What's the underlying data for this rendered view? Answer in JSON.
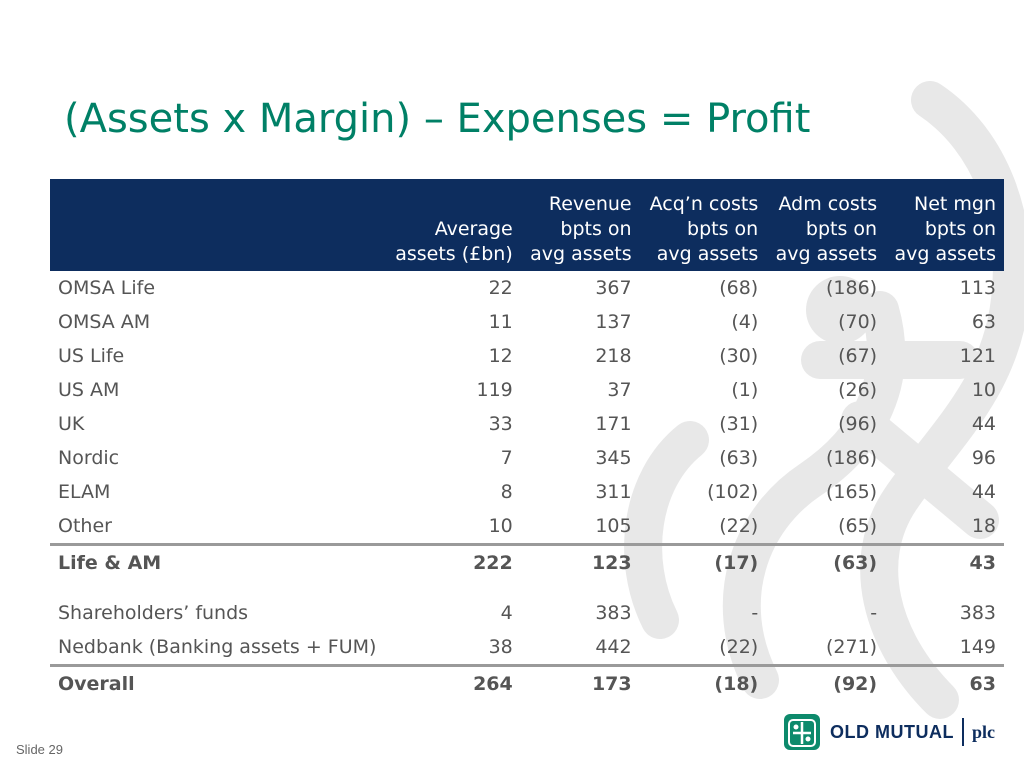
{
  "title": "(Assets x Margin) – Expenses = Profit",
  "table": {
    "headers": [
      {
        "lines": [
          "",
          "",
          ""
        ]
      },
      {
        "lines": [
          "",
          "Average",
          "assets (£bn)"
        ]
      },
      {
        "lines": [
          "Revenue",
          "bpts on",
          "avg assets"
        ]
      },
      {
        "lines": [
          "Acq’n costs",
          "bpts on",
          "avg assets"
        ]
      },
      {
        "lines": [
          "Adm costs",
          "bpts on",
          "avg assets"
        ]
      },
      {
        "lines": [
          "Net mgn",
          "bpts on",
          "avg assets"
        ]
      }
    ],
    "rows": [
      [
        "OMSA Life",
        "22",
        "367",
        "(68)",
        "(186)",
        "113"
      ],
      [
        "OMSA AM",
        "11",
        "137",
        "(4)",
        "(70)",
        "63"
      ],
      [
        "US Life",
        "12",
        "218",
        "(30)",
        "(67)",
        "121"
      ],
      [
        "US AM",
        "119",
        "37",
        "(1)",
        "(26)",
        "10"
      ],
      [
        "UK",
        "33",
        "171",
        "(31)",
        "(96)",
        "44"
      ],
      [
        "Nordic",
        "7",
        "345",
        "(63)",
        "(186)",
        "96"
      ],
      [
        "ELAM",
        "8",
        "311",
        "(102)",
        "(165)",
        "44"
      ],
      [
        "Other",
        "10",
        "105",
        "(22)",
        "(65)",
        "18"
      ]
    ],
    "life_total": [
      "Life & AM",
      "222",
      "123",
      "(17)",
      "(63)",
      "43"
    ],
    "rows2": [
      [
        "Shareholders’ funds",
        "4",
        "383",
        "-",
        "-",
        "383"
      ],
      [
        "Nedbank (Banking assets + FUM)",
        "38",
        "442",
        "(22)",
        "(271)",
        "149"
      ]
    ],
    "overall": [
      "Overall",
      "264",
      "173",
      "(18)",
      "(92)",
      "63"
    ]
  },
  "footer": {
    "slide": "Slide 29",
    "logo_text": "OLD MUTUAL",
    "logo_suffix": "plc"
  },
  "colors": {
    "title": "#008066",
    "header_bg": "#0d2d5e",
    "total_rule": "#9a9a9a",
    "watermark": "#e8e8e8"
  }
}
